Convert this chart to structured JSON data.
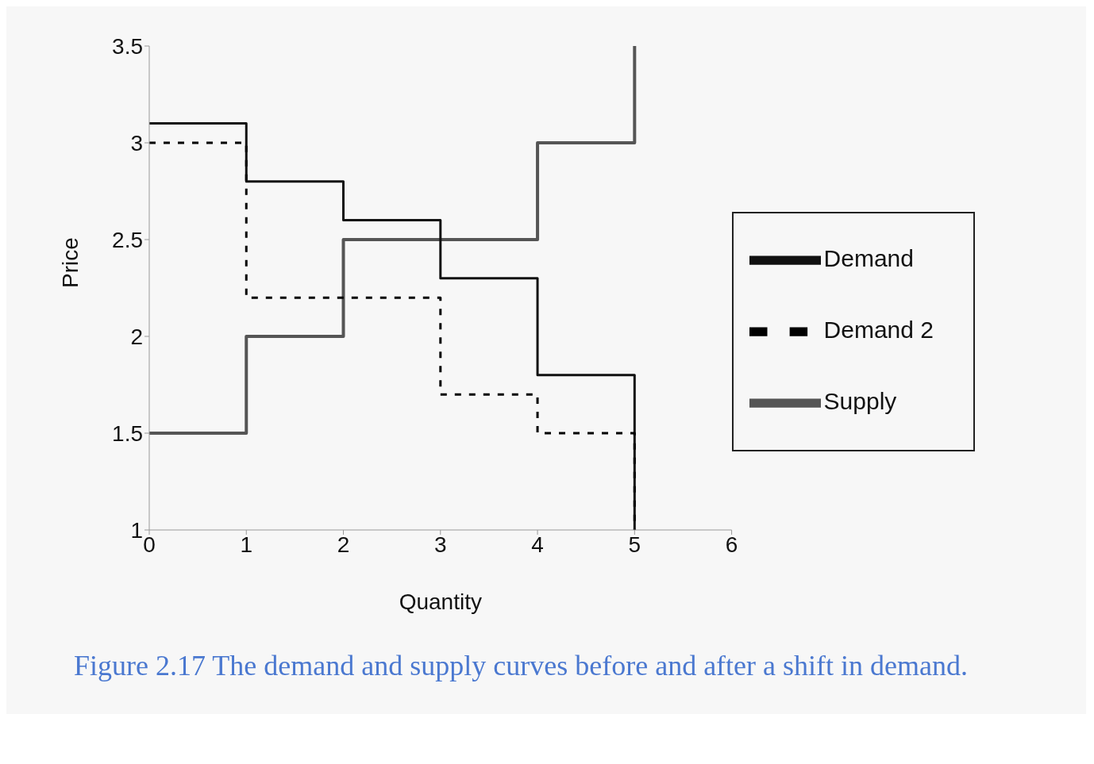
{
  "chart_data": {
    "type": "step",
    "xlabel": "Quantity",
    "ylabel": "Price",
    "x": [
      0,
      1,
      2,
      3,
      4,
      5
    ],
    "series": [
      {
        "name": "Supply",
        "color": "#555555",
        "line_style": "solid",
        "values": [
          1.5,
          2,
          2.5,
          2.5,
          3,
          3.5
        ]
      },
      {
        "name": "Demand",
        "color": "#111111",
        "line_style": "solid",
        "values": [
          3.1,
          2.8,
          2.6,
          2.3,
          1.8,
          1
        ]
      },
      {
        "name": "Demand 2",
        "color": "#000000",
        "line_style": "dashed",
        "values": [
          3,
          2.2,
          2.2,
          1.7,
          1.5,
          1
        ]
      }
    ],
    "xlim": [
      0,
      6
    ],
    "xticks": [
      0,
      1,
      2,
      3,
      4,
      5,
      6
    ],
    "ylim": [
      1,
      3.5
    ],
    "yticks": [
      1,
      1.5,
      2,
      2.5,
      3,
      3.5
    ],
    "grid": false,
    "legend": "right",
    "marker": "none",
    "annotations": [
      "Figure 2.17 The demand and supply curves before and after a shift in demand."
    ]
  }
}
